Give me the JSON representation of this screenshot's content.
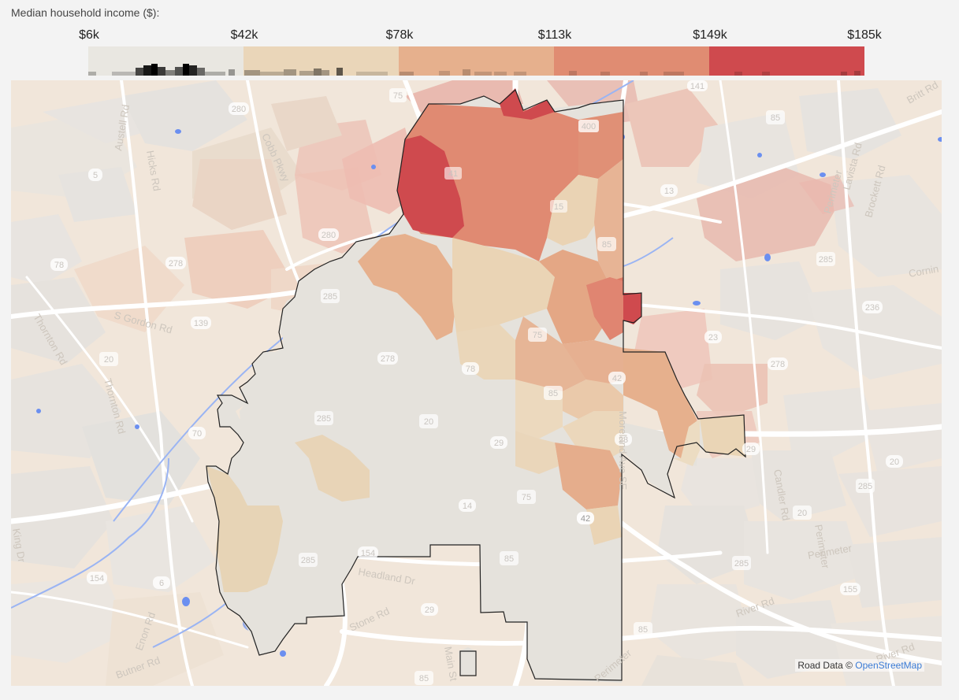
{
  "legend": {
    "title": "Median household income ($):",
    "ticks": [
      "$6k",
      "$42k",
      "$78k",
      "$113k",
      "$149k",
      "$185k"
    ],
    "bins": [
      {
        "color": "#e9e7e1"
      },
      {
        "color": "#ead6b9"
      },
      {
        "color": "#e6b08d"
      },
      {
        "color": "#e08c72"
      },
      {
        "color": "#cf4a4e"
      }
    ],
    "histogram_color": "#000000"
  },
  "map": {
    "colors": {
      "base": "#f1e6da",
      "outside_tract": "#ecc9b7",
      "road": "#ffffff",
      "water": "#6b8ff0",
      "river": "#9ab4f3",
      "city_outline": "#222222"
    },
    "road_labels": [
      "Austell Rd",
      "Hicks Rd",
      "Cobb Pkwy",
      "S Gordon Rd",
      "Thornton Rd",
      "Thornton Rd",
      "King Dr",
      "Enon Rd",
      "Butner Rd",
      "Headland Dr",
      "Stone Rd",
      "Main St",
      "Perimeter",
      "Perimeter",
      "Candler Rd",
      "River Rd",
      "River Rd",
      "Perimeter",
      "Lavista Rd",
      "Brockett Rd",
      "Perimeter",
      "Britt Rd",
      "Cornin",
      "Moreland Ave SE"
    ],
    "route_shields": [
      "280",
      "75",
      "400",
      "5",
      "41",
      "15",
      "85",
      "285",
      "280",
      "278",
      "78",
      "139",
      "20",
      "285",
      "278",
      "78",
      "75",
      "70",
      "85",
      "42",
      "23",
      "285",
      "20",
      "29",
      "14",
      "75",
      "42",
      "154",
      "6",
      "154",
      "285",
      "85",
      "29",
      "85",
      "285",
      "85",
      "20",
      "285",
      "155",
      "23",
      "278",
      "20",
      "285",
      "29",
      "13",
      "236",
      "155",
      "285",
      "141",
      "85",
      "5",
      "70"
    ]
  },
  "attribution": {
    "prefix": "Road Data ©",
    "link_text": "OpenStreetMap"
  }
}
